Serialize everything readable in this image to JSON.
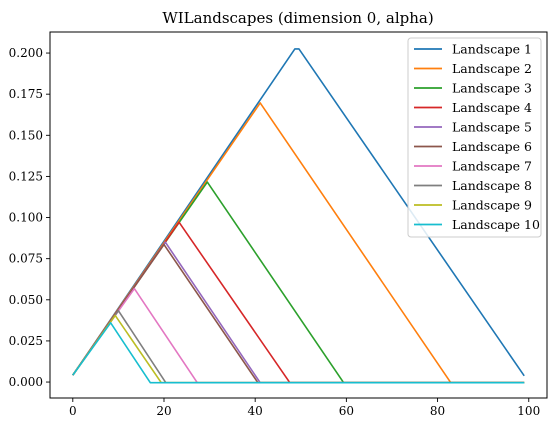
{
  "chart_data": {
    "type": "line",
    "title": "WILandscapes (dimension 0, alpha)",
    "xlabel": "",
    "ylabel": "",
    "xlim": [
      -5,
      104
    ],
    "ylim": [
      -0.0097,
      0.2128
    ],
    "xticks": [
      0,
      20,
      40,
      60,
      80,
      100
    ],
    "yticks": [
      0.0,
      0.025,
      0.05,
      0.075,
      0.1,
      0.125,
      0.15,
      0.175,
      0.2
    ],
    "ytick_labels": [
      "0.000",
      "0.025",
      "0.050",
      "0.075",
      "0.100",
      "0.125",
      "0.150",
      "0.175",
      "0.200"
    ],
    "grid": false,
    "legend_position": "top-right",
    "series": [
      {
        "name": "Landscape 1",
        "color": "#1f77b4",
        "x": [
          0,
          48.7,
          49.6,
          99
        ],
        "y": [
          0.0042,
          0.2025,
          0.2025,
          0.0038
        ]
      },
      {
        "name": "Landscape 2",
        "color": "#ff7f0e",
        "x": [
          0,
          41.1,
          82.9,
          99
        ],
        "y": [
          0.0042,
          0.1697,
          -0.0004,
          -0.0004
        ]
      },
      {
        "name": "Landscape 3",
        "color": "#2ca02c",
        "x": [
          0,
          29.5,
          59.4,
          99
        ],
        "y": [
          0.0042,
          0.1216,
          -0.0004,
          -0.0004
        ]
      },
      {
        "name": "Landscape 4",
        "color": "#d62728",
        "x": [
          0,
          23.3,
          47.6,
          99
        ],
        "y": [
          0.0042,
          0.0972,
          -0.0004,
          -0.0004
        ]
      },
      {
        "name": "Landscape 5",
        "color": "#9467bd",
        "x": [
          0,
          20.3,
          41.1,
          99
        ],
        "y": [
          0.0042,
          0.085,
          -0.0004,
          -0.0004
        ]
      },
      {
        "name": "Landscape 6",
        "color": "#8c564b",
        "x": [
          0,
          20.0,
          40.6,
          99
        ],
        "y": [
          0.0042,
          0.0836,
          -0.0004,
          -0.0004
        ]
      },
      {
        "name": "Landscape 7",
        "color": "#e377c2",
        "x": [
          0,
          13.5,
          27.3,
          99
        ],
        "y": [
          0.0042,
          0.0568,
          -0.0004,
          -0.0004
        ]
      },
      {
        "name": "Landscape 8",
        "color": "#7f7f7f",
        "x": [
          0,
          10.0,
          20.4,
          99
        ],
        "y": [
          0.0042,
          0.0434,
          -0.0004,
          -0.0004
        ]
      },
      {
        "name": "Landscape 9",
        "color": "#bcbd22",
        "x": [
          0,
          9.3,
          19.4,
          99
        ],
        "y": [
          0.0042,
          0.0405,
          -0.0004,
          -0.0004
        ]
      },
      {
        "name": "Landscape 10",
        "color": "#17becf",
        "x": [
          0,
          8.3,
          17.0,
          99
        ],
        "y": [
          0.0042,
          0.036,
          -0.0004,
          -0.0004
        ]
      }
    ]
  }
}
